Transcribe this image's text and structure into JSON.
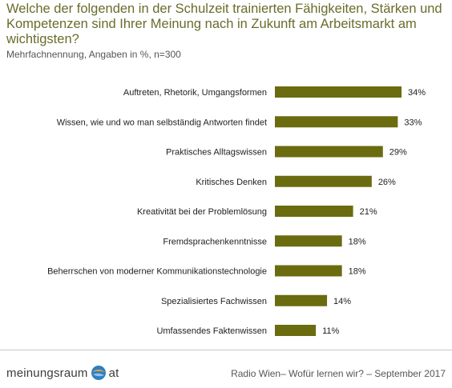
{
  "header": {
    "title": "Welche der folgenden in der Schulzeit trainierten Fähigkeiten, Stärken und Kompetenzen sind Ihrer Meinung nach in Zukunft am Arbeitsmarkt am wichtigsten?",
    "subtitle": "Mehrfachnennung, Angaben in %, n=300"
  },
  "chart_data": {
    "type": "bar",
    "orientation": "horizontal",
    "categories": [
      "Auftreten, Rhetorik, Umgangsformen",
      "Wissen, wie und wo man selbständig Antworten findet",
      "Praktisches Alltagswissen",
      "Kritisches Denken",
      "Kreativität bei der Problemlösung",
      "Fremdsprachenkenntnisse",
      "Beherrschen von moderner Kommunikationstechnologie",
      "Spezialisiertes Fachwissen",
      "Umfassendes Faktenwissen"
    ],
    "values": [
      34,
      33,
      29,
      26,
      21,
      18,
      18,
      14,
      11
    ],
    "data_labels": [
      "34%",
      "33%",
      "29%",
      "26%",
      "21%",
      "18%",
      "18%",
      "14%",
      "11%"
    ],
    "bar_color": "#6b6b10",
    "xlim": [
      0,
      34
    ],
    "grid": false,
    "legend": "none"
  },
  "footer": {
    "logo_left": "meinungsraum",
    "logo_right": "at",
    "source": "Radio Wien– Wofür lernen wir? – September 2017"
  }
}
